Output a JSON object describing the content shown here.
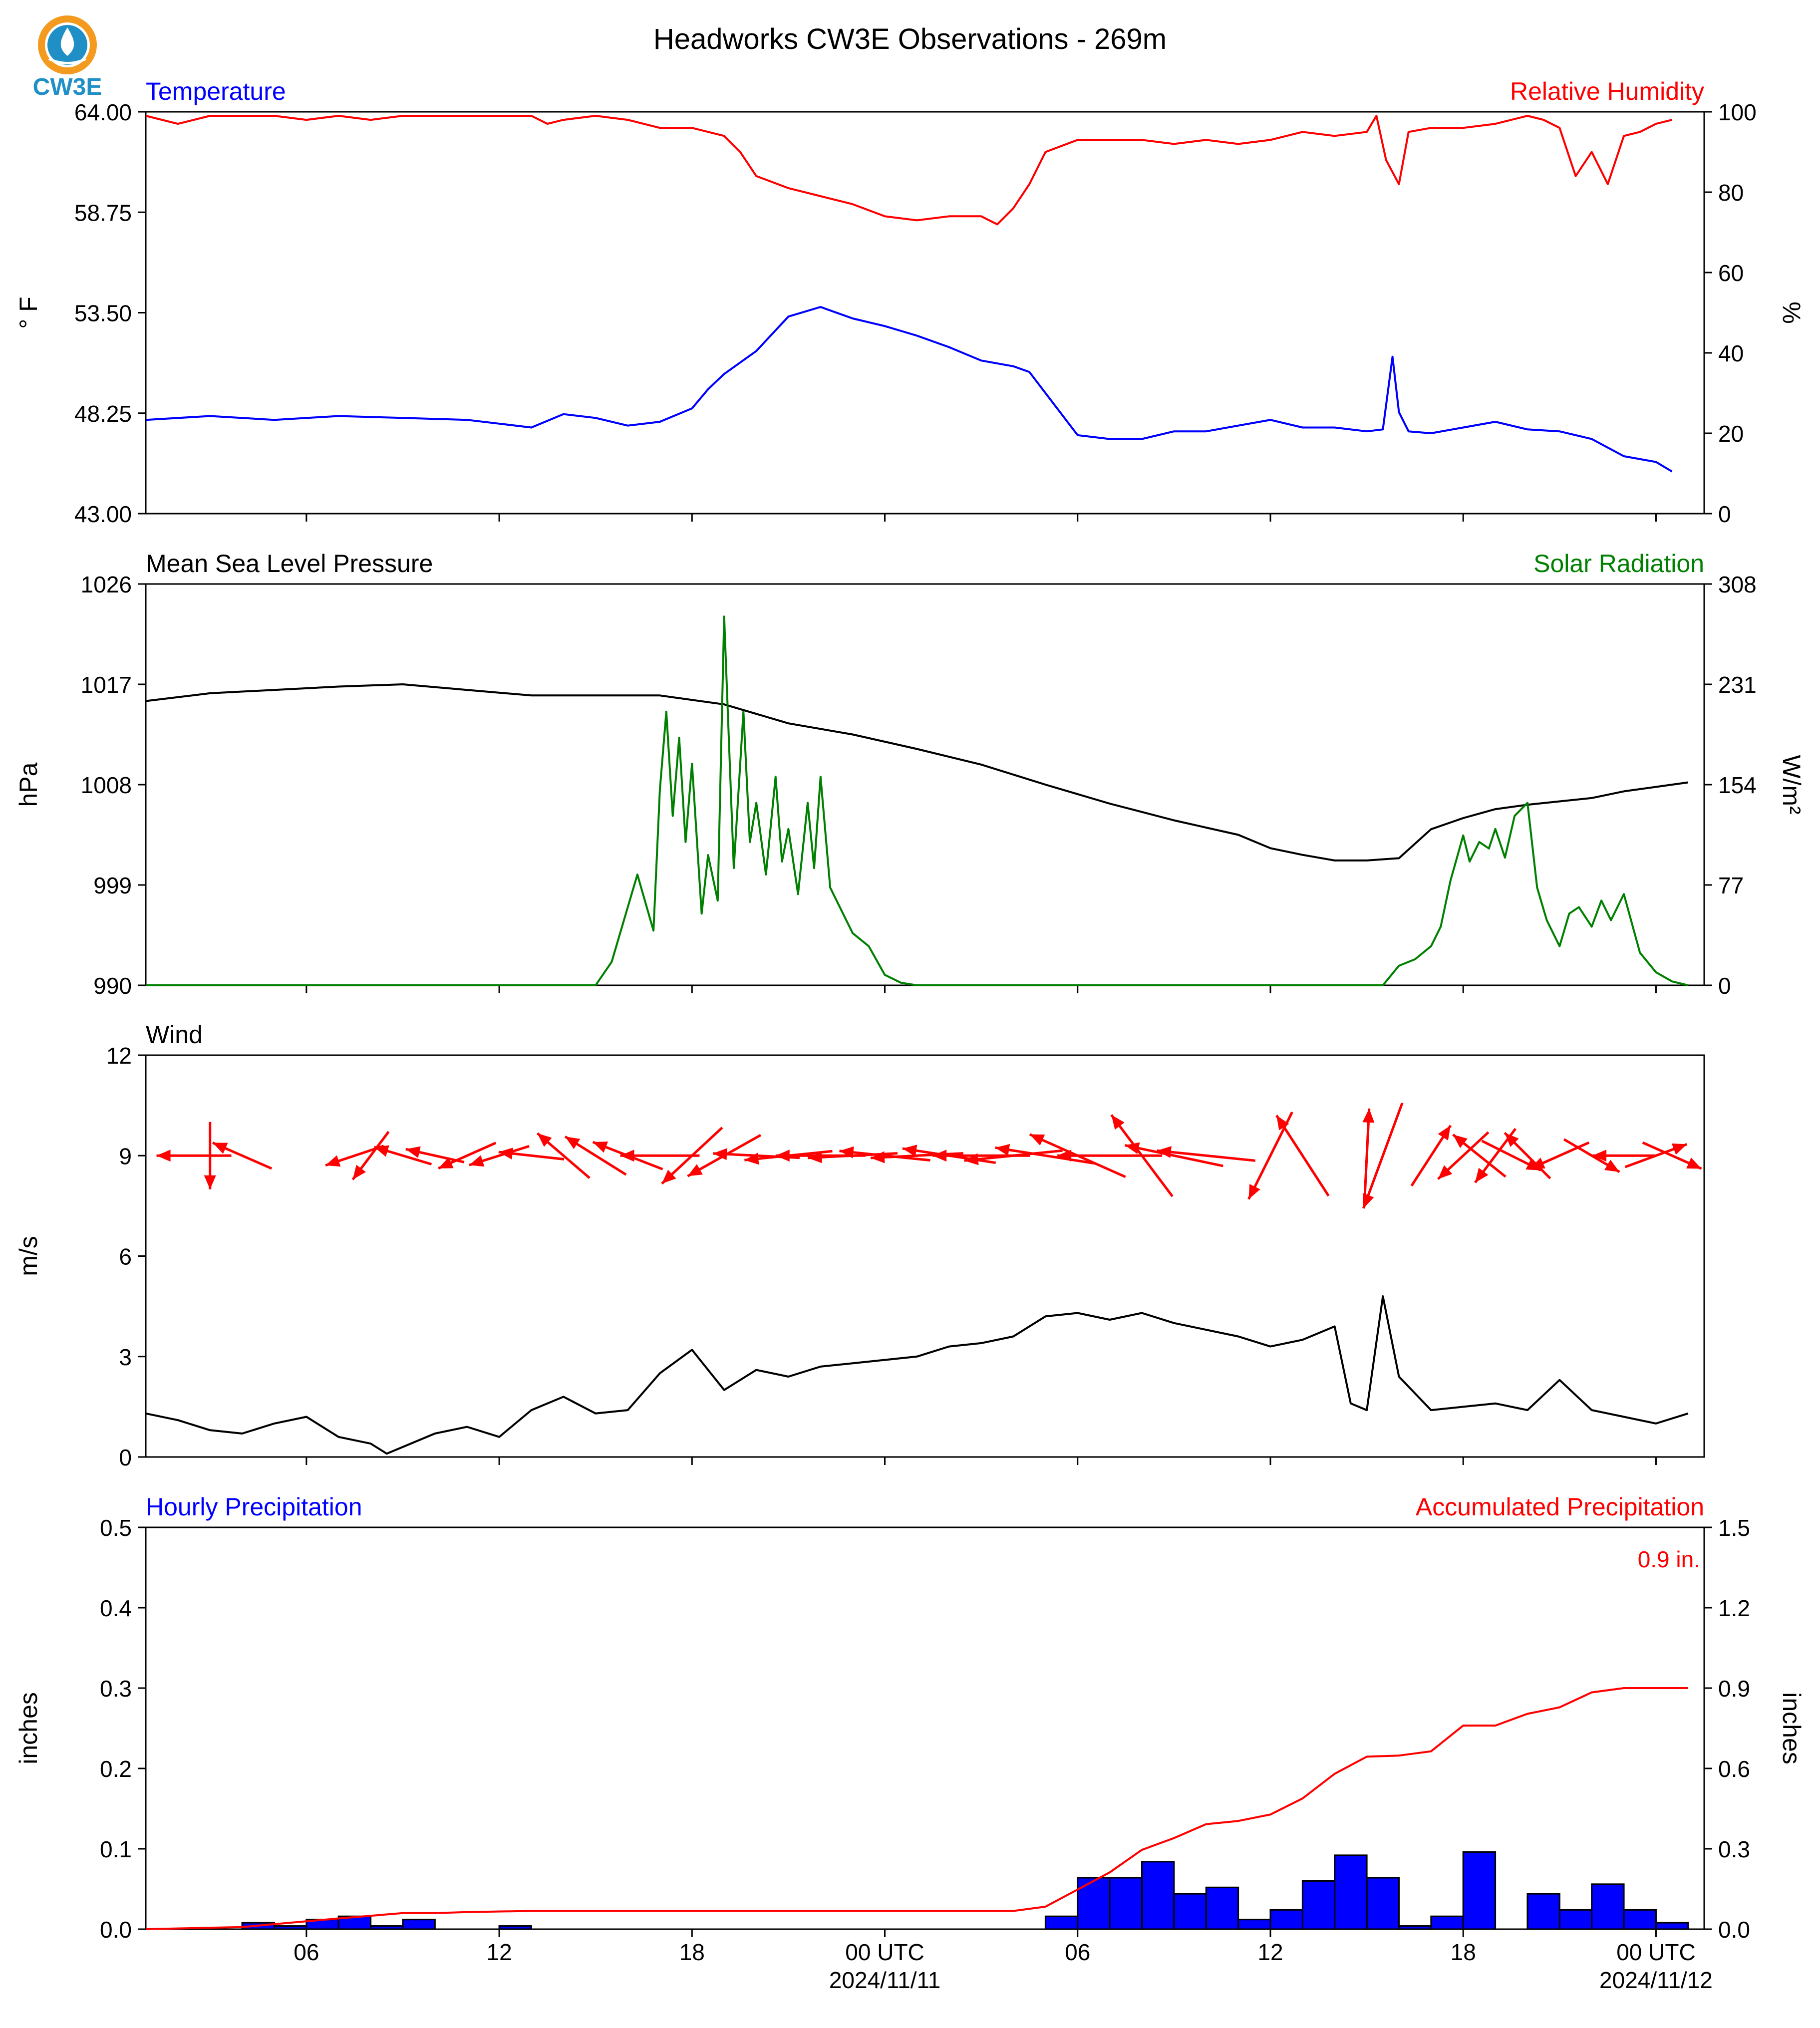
{
  "title": "Headworks CW3E Observations - 269m",
  "logo": {
    "text": "CW3E",
    "colors": {
      "ring": "#f39a1f",
      "drop": "#1f8fc6",
      "text": "#1f8fc6"
    }
  },
  "colors": {
    "blue": "#0000ff",
    "red": "#ff0000",
    "green": "#008000",
    "black": "#000000"
  },
  "time_axis": {
    "ticks": [
      {
        "label": "06",
        "sub": ""
      },
      {
        "label": "12",
        "sub": ""
      },
      {
        "label": "18",
        "sub": ""
      },
      {
        "label": "00 UTC",
        "sub": "2024/11/11"
      },
      {
        "label": "06",
        "sub": ""
      },
      {
        "label": "12",
        "sub": ""
      },
      {
        "label": "18",
        "sub": ""
      },
      {
        "label": "00 UTC",
        "sub": "2024/11/12"
      }
    ]
  },
  "chart_data": [
    {
      "type": "line",
      "panel": "temperature_humidity",
      "left_title": "Temperature",
      "right_title": "Relative Humidity",
      "ylabel": "° F",
      "ylabel_right": "%",
      "ylim": [
        43.0,
        64.0
      ],
      "ylim_right": [
        0,
        100
      ],
      "yticks": [
        "64.00",
        "58.75",
        "53.50",
        "48.25",
        "43.00"
      ],
      "yticks_right": [
        "100",
        "80",
        "60",
        "40",
        "20",
        "0"
      ],
      "series": [
        {
          "name": "Temperature",
          "color": "#0000ff",
          "axis": "left",
          "hours": [
            0,
            2,
            4,
            6,
            8,
            10,
            11,
            12,
            13,
            14,
            15,
            16,
            17,
            17.5,
            18,
            19,
            20,
            21,
            22,
            23,
            24,
            25,
            26,
            27,
            27.5,
            28,
            29,
            30,
            31,
            32,
            33,
            34,
            35,
            36,
            37,
            38,
            38.5,
            38.8,
            39,
            39.3,
            40,
            41,
            42,
            43,
            44,
            45,
            46,
            47,
            47.5
          ],
          "values": [
            47.9,
            48.1,
            47.9,
            48.1,
            48.0,
            47.9,
            47.7,
            47.5,
            48.2,
            48.0,
            47.6,
            47.8,
            48.5,
            49.5,
            50.3,
            51.5,
            53.3,
            53.8,
            53.2,
            52.8,
            52.3,
            51.7,
            51.0,
            50.7,
            50.4,
            49.3,
            47.1,
            46.9,
            46.9,
            47.3,
            47.3,
            47.6,
            47.9,
            47.5,
            47.5,
            47.3,
            47.4,
            51.2,
            48.3,
            47.3,
            47.2,
            47.5,
            47.8,
            47.4,
            47.3,
            46.9,
            46.0,
            45.7,
            45.2
          ]
        },
        {
          "name": "Relative Humidity",
          "color": "#ff0000",
          "axis": "right",
          "hours": [
            0,
            1,
            2,
            3,
            4,
            5,
            6,
            7,
            8,
            9,
            10,
            11,
            12,
            12.5,
            13,
            14,
            15,
            16,
            17,
            18,
            18.5,
            19,
            20,
            21,
            22,
            23,
            24,
            25,
            26,
            26.5,
            27,
            27.5,
            28,
            29,
            30,
            31,
            32,
            33,
            34,
            35,
            36,
            37,
            38,
            38.3,
            38.6,
            39,
            39.3,
            40,
            41,
            42,
            43,
            43.5,
            44,
            44.5,
            45,
            45.5,
            46,
            46.5,
            47,
            47.5
          ],
          "values": [
            99,
            97,
            99,
            99,
            99,
            98,
            99,
            98,
            99,
            99,
            99,
            99,
            99,
            97,
            98,
            99,
            98,
            96,
            96,
            94,
            90,
            84,
            81,
            79,
            77,
            74,
            73,
            74,
            74,
            72,
            76,
            82,
            90,
            93,
            93,
            93,
            92,
            93,
            92,
            93,
            95,
            94,
            95,
            99,
            88,
            82,
            95,
            96,
            96,
            97,
            99,
            98,
            96,
            84,
            90,
            82,
            94,
            95,
            97,
            98
          ]
        }
      ]
    },
    {
      "type": "line",
      "panel": "pressure_solar",
      "left_title": "Mean Sea Level Pressure",
      "right_title": "Solar Radiation",
      "ylabel": "hPa",
      "ylabel_right": "W/m²",
      "ylim": [
        990,
        1026
      ],
      "ylim_right": [
        0,
        308
      ],
      "yticks": [
        "1026",
        "1017",
        "1008",
        "999",
        "990"
      ],
      "yticks_right": [
        "308",
        "231",
        "154",
        "77",
        "0"
      ],
      "series": [
        {
          "name": "Mean Sea Level Pressure",
          "color": "#000000",
          "axis": "left",
          "hours": [
            0,
            2,
            4,
            6,
            8,
            10,
            12,
            14,
            16,
            18,
            20,
            22,
            24,
            26,
            28,
            30,
            32,
            34,
            35,
            36,
            37,
            38,
            39,
            40,
            41,
            42,
            43,
            44,
            45,
            46,
            47,
            48
          ],
          "values": [
            1015.5,
            1016.2,
            1016.5,
            1016.8,
            1017.0,
            1016.5,
            1016.0,
            1016.0,
            1016.0,
            1015.2,
            1013.5,
            1012.5,
            1011.2,
            1009.8,
            1008.0,
            1006.3,
            1004.8,
            1003.5,
            1002.3,
            1001.7,
            1001.2,
            1001.2,
            1001.4,
            1004.0,
            1005.0,
            1005.8,
            1006.2,
            1006.5,
            1006.8,
            1007.4,
            1007.8,
            1008.2
          ]
        },
        {
          "name": "Solar Radiation",
          "color": "#008000",
          "axis": "right",
          "hours": [
            0,
            14,
            14.5,
            15,
            15.3,
            15.8,
            16,
            16.2,
            16.4,
            16.6,
            16.8,
            17,
            17.3,
            17.5,
            17.8,
            18,
            18.3,
            18.6,
            18.8,
            19,
            19.3,
            19.6,
            19.8,
            20,
            20.3,
            20.6,
            20.8,
            21,
            21.3,
            21.6,
            22,
            22.5,
            23,
            23.5,
            24,
            38.5,
            39,
            39.5,
            40,
            40.3,
            40.6,
            41,
            41.2,
            41.5,
            41.8,
            42,
            42.3,
            42.6,
            43,
            43.3,
            43.6,
            44,
            44.3,
            44.6,
            45,
            45.3,
            45.6,
            46,
            46.5,
            47,
            47.5,
            48
          ],
          "values": [
            0,
            0,
            18,
            60,
            85,
            42,
            150,
            210,
            130,
            190,
            110,
            170,
            55,
            100,
            65,
            283,
            90,
            210,
            110,
            140,
            85,
            160,
            95,
            120,
            70,
            140,
            90,
            160,
            75,
            60,
            40,
            30,
            8,
            2,
            0,
            0,
            15,
            20,
            30,
            45,
            80,
            115,
            95,
            110,
            105,
            120,
            98,
            130,
            140,
            75,
            50,
            30,
            55,
            60,
            45,
            65,
            50,
            70,
            25,
            10,
            3,
            0
          ]
        }
      ]
    },
    {
      "type": "line",
      "panel": "wind",
      "left_title": "Wind",
      "ylabel": "m/s",
      "ylim": [
        0,
        12
      ],
      "yticks": [
        "12",
        "9",
        "6",
        "3",
        "0"
      ],
      "series": [
        {
          "name": "Wind",
          "color": "#000000",
          "axis": "left",
          "hours": [
            0,
            1,
            2,
            3,
            4,
            5,
            6,
            7,
            7.5,
            8,
            9,
            10,
            11,
            12,
            13,
            14,
            15,
            16,
            17,
            18,
            19,
            20,
            21,
            22,
            23,
            24,
            25,
            26,
            27,
            28,
            29,
            30,
            31,
            32,
            33,
            34,
            35,
            36,
            37,
            37.5,
            38,
            38.5,
            39,
            40,
            41,
            42,
            43,
            44,
            45,
            46,
            47,
            48
          ],
          "values": [
            1.3,
            1.1,
            0.8,
            0.7,
            1.0,
            1.2,
            0.6,
            0.4,
            0.1,
            0.3,
            0.7,
            0.9,
            0.6,
            1.4,
            1.8,
            1.3,
            1.4,
            2.5,
            3.2,
            2.0,
            2.6,
            2.4,
            2.7,
            2.8,
            2.9,
            3.0,
            3.3,
            3.4,
            3.6,
            4.2,
            4.3,
            4.1,
            4.3,
            4.0,
            3.8,
            3.6,
            3.3,
            3.5,
            3.9,
            1.6,
            1.4,
            4.8,
            2.4,
            1.4,
            1.5,
            1.6,
            1.4,
            2.3,
            1.4,
            1.2,
            1.0,
            1.3
          ]
        }
      ]
    },
    {
      "type": "bar",
      "panel": "precipitation",
      "left_title": "Hourly Precipitation",
      "right_title": "Accumulated Precipitation",
      "annotation": "0.9 in.",
      "ylabel": "inches",
      "ylabel_right": "inches",
      "ylim": [
        0,
        0.5
      ],
      "ylim_right": [
        0,
        1.5
      ],
      "yticks": [
        "0.5",
        "0.4",
        "0.3",
        "0.2",
        "0.1",
        "0.0"
      ],
      "yticks_right": [
        "1.5",
        "1.2",
        "0.9",
        "0.6",
        "0.3",
        "0.0"
      ],
      "series": [
        {
          "name": "Hourly Precipitation",
          "color": "#0000ff",
          "axis": "left",
          "hours": [
            3,
            4,
            5,
            6,
            7,
            8,
            9,
            10,
            11,
            12,
            13,
            14,
            15,
            16,
            17,
            18,
            19,
            20,
            21,
            22,
            23,
            24,
            25,
            26,
            27,
            28,
            29,
            30,
            31,
            32,
            33,
            34,
            35,
            36,
            37,
            38,
            39,
            40,
            41,
            42,
            43,
            44,
            45,
            46,
            47
          ],
          "values": [
            0.008,
            0.004,
            0.012,
            0.016,
            0.004,
            0.012,
            0,
            0,
            0.004,
            0,
            0,
            0,
            0,
            0,
            0,
            0,
            0,
            0,
            0,
            0,
            0,
            0,
            0,
            0,
            0,
            0.016,
            0.064,
            0.064,
            0.084,
            0.044,
            0.052,
            0.012,
            0.024,
            0.06,
            0.092,
            0.064,
            0.004,
            0.016,
            0.096,
            0,
            0.044,
            0.024,
            0.056,
            0.024,
            0.008
          ]
        },
        {
          "name": "Accumulated Precipitation",
          "color": "#ff0000",
          "axis": "right",
          "hours": [
            0,
            3,
            6,
            8,
            9,
            10,
            12,
            14,
            16,
            18,
            20,
            22,
            24,
            26,
            27,
            28,
            29,
            30,
            31,
            32,
            33,
            34,
            35,
            36,
            37,
            38,
            39,
            40,
            41,
            42,
            43,
            44,
            45,
            46,
            47,
            48
          ],
          "values": [
            0,
            0.008,
            0.04,
            0.06,
            0.06,
            0.064,
            0.068,
            0.068,
            0.068,
            0.068,
            0.068,
            0.068,
            0.068,
            0.068,
            0.068,
            0.084,
            0.148,
            0.212,
            0.296,
            0.34,
            0.392,
            0.404,
            0.428,
            0.488,
            0.58,
            0.644,
            0.648,
            0.664,
            0.76,
            0.76,
            0.804,
            0.828,
            0.884,
            0.9,
            0.9,
            0.9
          ]
        }
      ]
    }
  ],
  "wind_arrows": [
    {
      "hour": 1.5,
      "speed": 2.0,
      "u": -1.0,
      "v": 0.0
    },
    {
      "hour": 2.0,
      "speed": 1.5,
      "u": 0.0,
      "v": -1.0
    },
    {
      "hour": 3.0,
      "speed": 1.3,
      "u": -0.8,
      "v": 0.35
    },
    {
      "hour": 6.5,
      "speed": 1.1,
      "u": -0.9,
      "v": -0.3
    },
    {
      "hour": 7.0,
      "speed": 1.0,
      "u": -0.6,
      "v": -0.8
    },
    {
      "hour": 8.0,
      "speed": 1.0,
      "u": -1.0,
      "v": 0.3
    },
    {
      "hour": 9.0,
      "speed": 1.0,
      "u": -0.9,
      "v": 0.2
    },
    {
      "hour": 10.0,
      "speed": 1.2,
      "u": -0.9,
      "v": -0.4
    },
    {
      "hour": 11.0,
      "speed": 1.2,
      "u": -0.95,
      "v": -0.3
    },
    {
      "hour": 12.0,
      "speed": 1.4,
      "u": -0.9,
      "v": 0.1
    },
    {
      "hour": 13.0,
      "speed": 1.6,
      "u": -0.7,
      "v": 0.6
    },
    {
      "hour": 14.0,
      "speed": 1.8,
      "u": -0.8,
      "v": 0.5
    },
    {
      "hour": 15.0,
      "speed": 2.0,
      "u": -0.9,
      "v": 0.35
    },
    {
      "hour": 16.0,
      "speed": 2.3,
      "u": -1.0,
      "v": 0.0
    },
    {
      "hour": 17.0,
      "speed": 2.5,
      "u": -0.7,
      "v": -0.65
    },
    {
      "hour": 18.0,
      "speed": 2.6,
      "u": -0.8,
      "v": -0.45
    },
    {
      "hour": 19.0,
      "speed": 2.8,
      "u": -0.98,
      "v": 0.05
    },
    {
      "hour": 20.0,
      "speed": 2.9,
      "u": -0.98,
      "v": -0.1
    },
    {
      "hour": 21.0,
      "speed": 3.0,
      "u": -1.0,
      "v": 0.0
    },
    {
      "hour": 22.0,
      "speed": 3.0,
      "u": -0.98,
      "v": -0.05
    },
    {
      "hour": 23.0,
      "speed": 3.1,
      "u": -0.97,
      "v": 0.1
    },
    {
      "hour": 24.0,
      "speed": 3.2,
      "u": -1.0,
      "v": -0.05
    },
    {
      "hour": 25.0,
      "speed": 3.3,
      "u": -0.98,
      "v": 0.15
    },
    {
      "hour": 26.0,
      "speed": 3.5,
      "u": -1.0,
      "v": 0.0
    },
    {
      "hour": 27.0,
      "speed": 3.6,
      "u": -0.98,
      "v": -0.1
    },
    {
      "hour": 28.0,
      "speed": 3.8,
      "u": -0.95,
      "v": 0.15
    },
    {
      "hour": 29.0,
      "speed": 4.0,
      "u": -0.9,
      "v": 0.4
    },
    {
      "hour": 30.0,
      "speed": 4.0,
      "u": -1.0,
      "v": 0.0
    },
    {
      "hour": 31.0,
      "speed": 3.8,
      "u": -0.6,
      "v": 0.8
    },
    {
      "hour": 32.0,
      "speed": 3.7,
      "u": -0.95,
      "v": 0.2
    },
    {
      "hour": 33.0,
      "speed": 3.6,
      "u": -0.98,
      "v": 0.1
    },
    {
      "hour": 35.0,
      "speed": 3.5,
      "u": -0.45,
      "v": -0.9
    },
    {
      "hour": 36.0,
      "speed": 3.4,
      "u": -0.55,
      "v": 0.85
    },
    {
      "hour": 38.0,
      "speed": 3.3,
      "u": 0.05,
      "v": 1.0
    },
    {
      "hour": 38.5,
      "speed": 4.5,
      "u": -0.35,
      "v": -0.95
    },
    {
      "hour": 40.0,
      "speed": 1.8,
      "u": 0.55,
      "v": 0.85
    },
    {
      "hour": 41.0,
      "speed": 1.6,
      "u": -0.7,
      "v": -0.65
    },
    {
      "hour": 41.5,
      "speed": 1.5,
      "u": -0.75,
      "v": 0.6
    },
    {
      "hour": 42.0,
      "speed": 1.5,
      "u": -0.6,
      "v": -0.8
    },
    {
      "hour": 42.5,
      "speed": 1.4,
      "u": 0.9,
      "v": -0.45
    },
    {
      "hour": 43.0,
      "speed": 1.3,
      "u": -0.7,
      "v": 0.7
    },
    {
      "hour": 44.0,
      "speed": 1.3,
      "u": -0.9,
      "v": -0.4
    },
    {
      "hour": 45.0,
      "speed": 1.3,
      "u": 0.85,
      "v": -0.5
    },
    {
      "hour": 46.0,
      "speed": 1.2,
      "u": -1.0,
      "v": 0.0
    },
    {
      "hour": 47.0,
      "speed": 1.4,
      "u": 0.95,
      "v": 0.35
    },
    {
      "hour": 47.5,
      "speed": 1.3,
      "u": 0.9,
      "v": -0.4
    }
  ]
}
